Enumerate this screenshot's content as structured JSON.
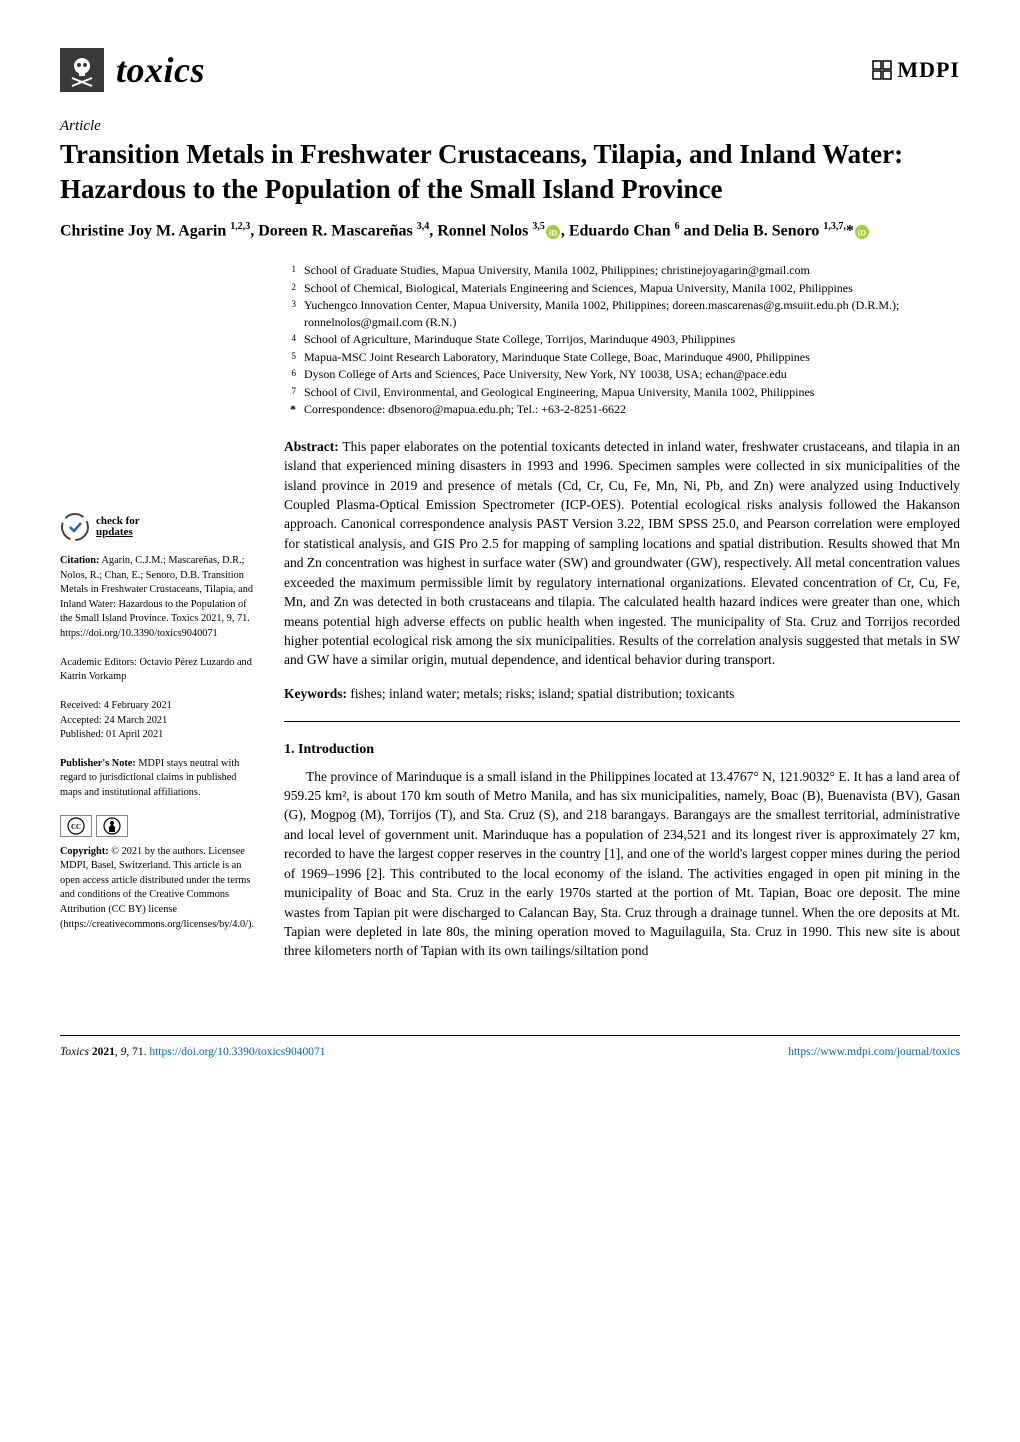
{
  "journal": {
    "name": "toxics",
    "icon_fg": "#ffffff",
    "icon_bg": "#3a3a3a"
  },
  "publisher": {
    "name": "MDPI"
  },
  "article_type": "Article",
  "title": "Transition Metals in Freshwater Crustaceans, Tilapia, and Inland Water: Hazardous to the Population of the Small Island Province",
  "authors_html": "Christine Joy M. Agarin <sup>1,2,3</sup>, Doreen R. Mascareñas <sup>3,4</sup>, Ronnel Nolos <sup>3,5</sup>ⓘ, Eduardo Chan <sup>6</sup> and Delia B. Senoro <sup>1,3,7,</sup>*ⓘ",
  "authors": [
    {
      "name": "Christine Joy M. Agarin",
      "sup": "1,2,3"
    },
    {
      "name": "Doreen R. Mascareñas",
      "sup": "3,4"
    },
    {
      "name": "Ronnel Nolos",
      "sup": "3,5",
      "orcid": true
    },
    {
      "name": "Eduardo Chan",
      "sup": "6"
    },
    {
      "name": "Delia B. Senoro",
      "sup": "1,3,7,",
      "corr": true,
      "orcid": true
    }
  ],
  "affiliations": [
    {
      "n": "1",
      "text": "School of Graduate Studies, Mapua University, Manila 1002, Philippines; christinejoyagarin@gmail.com"
    },
    {
      "n": "2",
      "text": "School of Chemical, Biological, Materials Engineering and Sciences, Mapua University, Manila 1002, Philippines"
    },
    {
      "n": "3",
      "text": "Yuchengco Innovation Center, Mapua University, Manila 1002, Philippines; doreen.mascarenas@g.msuiit.edu.ph (D.R.M.); ronnelnolos@gmail.com (R.N.)"
    },
    {
      "n": "4",
      "text": "School of Agriculture, Marinduque State College, Torrijos, Marinduque 4903, Philippines"
    },
    {
      "n": "5",
      "text": "Mapua-MSC Joint Research Laboratory, Marinduque State College, Boac, Marinduque 4900, Philippines"
    },
    {
      "n": "6",
      "text": "Dyson College of Arts and Sciences, Pace University, New York, NY 10038, USA; echan@pace.edu"
    },
    {
      "n": "7",
      "text": "School of Civil, Environmental, and Geological Engineering, Mapua University, Manila 1002, Philippines"
    }
  ],
  "correspondence": "Correspondence: dbsenoro@mapua.edu.ph; Tel.: +63-2-8251-6622",
  "abstract": {
    "label": "Abstract:",
    "text": "This paper elaborates on the potential toxicants detected in inland water, freshwater crustaceans, and tilapia in an island that experienced mining disasters in 1993 and 1996. Specimen samples were collected in six municipalities of the island province in 2019 and presence of metals (Cd, Cr, Cu, Fe, Mn, Ni, Pb, and Zn) were analyzed using Inductively Coupled Plasma-Optical Emission Spectrometer (ICP-OES). Potential ecological risks analysis followed the Hakanson approach. Canonical correspondence analysis PAST Version 3.22, IBM SPSS 25.0, and Pearson correlation were employed for statistical analysis, and GIS Pro 2.5 for mapping of sampling locations and spatial distribution. Results showed that Mn and Zn concentration was highest in surface water (SW) and groundwater (GW), respectively. All metal concentration values exceeded the maximum permissible limit by regulatory international organizations. Elevated concentration of Cr, Cu, Fe, Mn, and Zn was detected in both crustaceans and tilapia. The calculated health hazard indices were greater than one, which means potential high adverse effects on public health when ingested. The municipality of Sta. Cruz and Torrijos recorded higher potential ecological risk among the six municipalities. Results of the correlation analysis suggested that metals in SW and GW have a similar origin, mutual dependence, and identical behavior during transport."
  },
  "keywords": {
    "label": "Keywords:",
    "text": "fishes; inland water; metals; risks; island; spatial distribution; toxicants"
  },
  "sidebar": {
    "check_updates": {
      "line1": "check for",
      "line2": "updates"
    },
    "citation": {
      "label": "Citation:",
      "text": "Agarin, C.J.M.; Mascareñas, D.R.; Nolos, R.; Chan, E.; Senoro, D.B. Transition Metals in Freshwater Crustaceans, Tilapia, and Inland Water: Hazardous to the Population of the Small Island Province. Toxics 2021, 9, 71. https://doi.org/10.3390/toxics9040071"
    },
    "editors": {
      "text": "Academic Editors: Octavio Pérez Luzardo and Katrin Vorkamp"
    },
    "dates": {
      "received": "Received: 4 February 2021",
      "accepted": "Accepted: 24 March 2021",
      "published": "Published: 01 April 2021"
    },
    "publishers_note": {
      "label": "Publisher's Note:",
      "text": "MDPI stays neutral with regard to jurisdictional claims in published maps and institutional affiliations."
    },
    "copyright": {
      "label": "Copyright:",
      "text": "© 2021 by the authors. Licensee MDPI, Basel, Switzerland. This article is an open access article distributed under the terms and conditions of the Creative Commons Attribution (CC BY) license (https://creativecommons.org/licenses/by/4.0/)."
    }
  },
  "intro": {
    "heading": "1. Introduction",
    "para": "The province of Marinduque is a small island in the Philippines located at 13.4767° N, 121.9032° E. It has a land area of 959.25 km², is about 170 km south of Metro Manila, and has six municipalities, namely, Boac (B), Buenavista (BV), Gasan (G), Mogpog (M), Torrijos (T), and Sta. Cruz (S), and 218 barangays. Barangays are the smallest territorial, administrative and local level of government unit. Marinduque has a population of 234,521 and its longest river is approximately 27 km, recorded to have the largest copper reserves in the country [1], and one of the world's largest copper mines during the period of 1969–1996 [2]. This contributed to the local economy of the island. The activities engaged in open pit mining in the municipality of Boac and Sta. Cruz in the early 1970s started at the portion of Mt. Tapian, Boac ore deposit. The mine wastes from Tapian pit were discharged to Calancan Bay, Sta. Cruz through a drainage tunnel. When the ore deposits at Mt. Tapian were depleted in late 80s, the mining operation moved to Maguilaguila, Sta. Cruz in 1990. This new site is about three kilometers north of Tapian with its own tailings/siltation pond"
  },
  "footer": {
    "left": "Toxics 2021, 9, 71. https://doi.org/10.3390/toxics9040071",
    "right": "https://www.mdpi.com/journal/toxics"
  },
  "colors": {
    "text": "#000000",
    "link": "#0066aa",
    "orcid": "#a6ce39",
    "journal_icon_bg": "#3a3a3a",
    "rule": "#000000"
  },
  "fontsizes": {
    "title": 27,
    "authors": 16,
    "body": 13.5,
    "sidebar": 10.3,
    "affil": 12,
    "footer": 11.5
  }
}
